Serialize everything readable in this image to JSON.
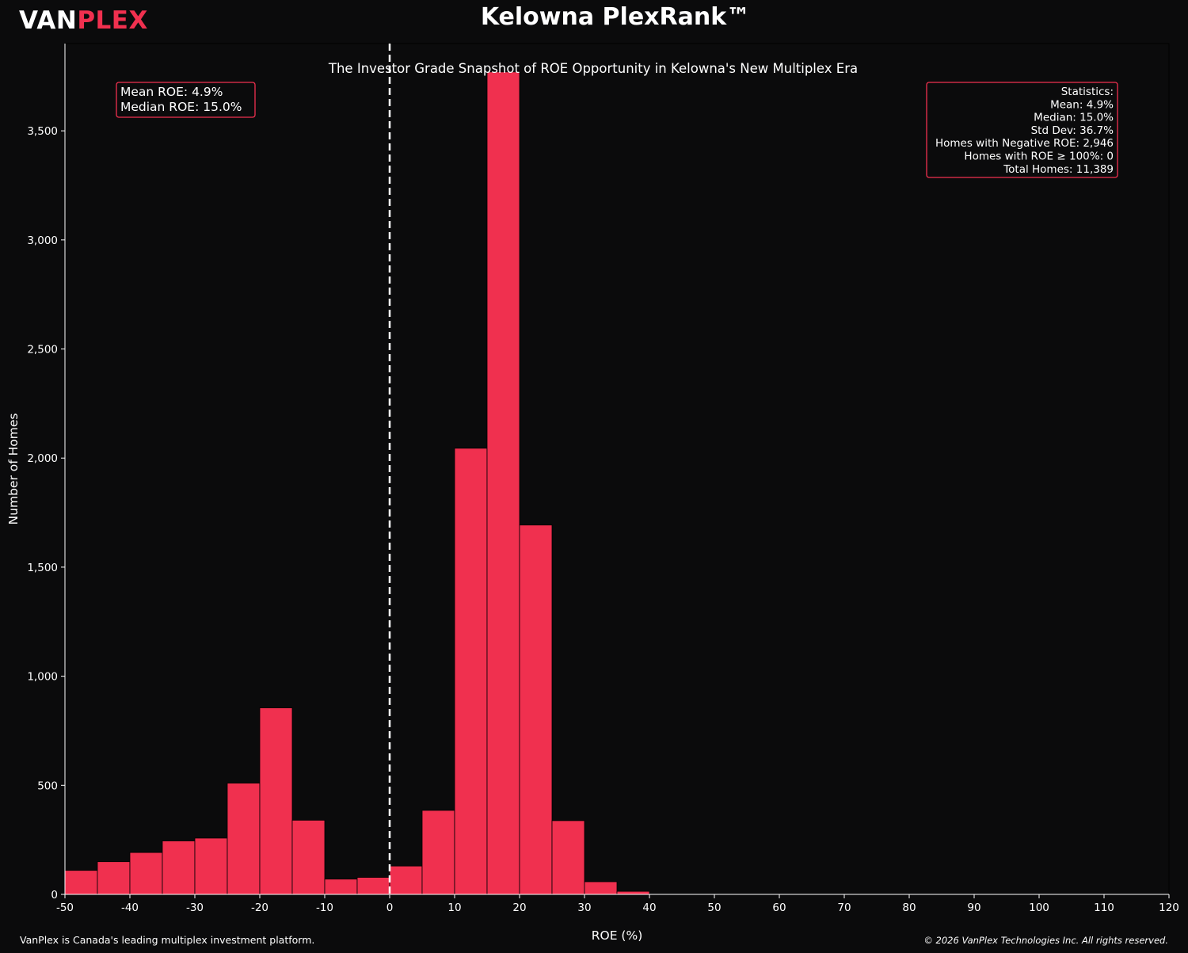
{
  "brand": {
    "part1": "VAN",
    "part2": "PLEX"
  },
  "header": {
    "title": "Kelowna PlexRank™"
  },
  "footer": {
    "left": "VanPlex is Canada's leading multiplex investment platform.",
    "right": "© 2026 VanPlex Technologies Inc. All rights reserved."
  },
  "colors": {
    "background": "#0b0b0c",
    "bar": "#f0304f",
    "accent": "#f0304f",
    "text": "#ffffff"
  },
  "chart_data": {
    "type": "bar",
    "subtitle": "The Investor Grade Snapshot of ROE Opportunity in Kelowna's New Multiplex Era",
    "xlabel": "ROE (%)",
    "ylabel": "Number of Homes",
    "xlim": [
      -50,
      120
    ],
    "ylim": [
      0,
      3900
    ],
    "bin_width": 5,
    "x_ticks": [
      "-50",
      "-40",
      "-30",
      "-20",
      "-10",
      "0",
      "10",
      "20",
      "30",
      "40",
      "50",
      "60",
      "70",
      "80",
      "90",
      "100",
      "110",
      "120"
    ],
    "y_ticks": [
      "0",
      "500",
      "1,000",
      "1,500",
      "2,000",
      "2,500",
      "3,000",
      "3,500"
    ],
    "bins": [
      {
        "start": -50,
        "end": -45,
        "count": 110
      },
      {
        "start": -45,
        "end": -40,
        "count": 150
      },
      {
        "start": -40,
        "end": -35,
        "count": 192
      },
      {
        "start": -35,
        "end": -30,
        "count": 245
      },
      {
        "start": -30,
        "end": -25,
        "count": 258
      },
      {
        "start": -25,
        "end": -20,
        "count": 510
      },
      {
        "start": -20,
        "end": -15,
        "count": 855
      },
      {
        "start": -15,
        "end": -10,
        "count": 340
      },
      {
        "start": -10,
        "end": -5,
        "count": 70
      },
      {
        "start": -5,
        "end": 0,
        "count": 78
      },
      {
        "start": 0,
        "end": 5,
        "count": 130
      },
      {
        "start": 5,
        "end": 10,
        "count": 385
      },
      {
        "start": 10,
        "end": 15,
        "count": 2045
      },
      {
        "start": 15,
        "end": 20,
        "count": 3770
      },
      {
        "start": 20,
        "end": 25,
        "count": 1693
      },
      {
        "start": 25,
        "end": 30,
        "count": 338
      },
      {
        "start": 30,
        "end": 35,
        "count": 58
      },
      {
        "start": 35,
        "end": 40,
        "count": 14
      }
    ],
    "reference_line": {
      "x": 0,
      "style": "dashed",
      "color": "#ffffff"
    },
    "mean_box": [
      "Mean ROE: 4.9%",
      "Median ROE: 15.0%"
    ],
    "stats_box": [
      "Statistics:",
      "Mean: 4.9%",
      "Median: 15.0%",
      "Std Dev: 36.7%",
      "Homes with Negative ROE: 2,946",
      "Homes with ROE ≥ 100%: 0",
      "Total Homes: 11,389"
    ],
    "grid": false,
    "legend": "none"
  }
}
